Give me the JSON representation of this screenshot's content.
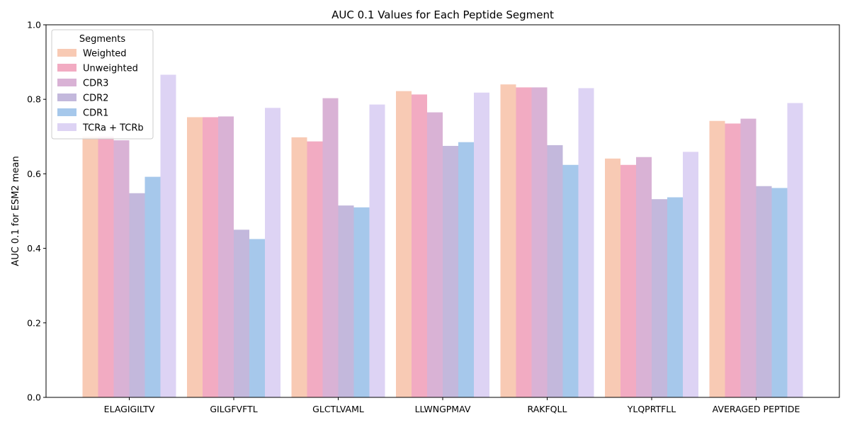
{
  "chart_data": {
    "type": "bar",
    "title": "AUC 0.1 Values for Each Peptide Segment",
    "xlabel": "",
    "ylabel": "AUC 0.1 for ESM2 mean",
    "ylim": [
      0,
      1.0
    ],
    "yticks": [
      "0.0",
      "0.2",
      "0.4",
      "0.6",
      "0.8",
      "1.0"
    ],
    "grid": false,
    "legend": {
      "title": "Segments",
      "placement": "top-left"
    },
    "categories": [
      "ELAGIGILTV",
      "GILGFVFTL",
      "GLCTLVAML",
      "LLWNGPMAV",
      "RAKFQLL",
      "YLQPRTFLL",
      "AVERAGED PEPTIDE"
    ],
    "series": [
      {
        "name": "Weighted",
        "color": "#f8cab4",
        "values": [
          0.7,
          0.752,
          0.698,
          0.822,
          0.84,
          0.641,
          0.742
        ]
      },
      {
        "name": "Unweighted",
        "color": "#f2abc2",
        "values": [
          0.7,
          0.752,
          0.687,
          0.813,
          0.832,
          0.624,
          0.735
        ]
      },
      {
        "name": "CDR3",
        "color": "#d9b2d5",
        "values": [
          0.69,
          0.754,
          0.803,
          0.765,
          0.832,
          0.645,
          0.748
        ]
      },
      {
        "name": "CDR2",
        "color": "#c3b8dc",
        "values": [
          0.548,
          0.45,
          0.515,
          0.675,
          0.677,
          0.532,
          0.567
        ]
      },
      {
        "name": "CDR1",
        "color": "#a6c8eb",
        "values": [
          0.592,
          0.425,
          0.51,
          0.685,
          0.624,
          0.537,
          0.562
        ]
      },
      {
        "name": "TCRa + TCRb",
        "color": "#ddd3f4",
        "values": [
          0.866,
          0.777,
          0.786,
          0.818,
          0.83,
          0.659,
          0.79
        ]
      }
    ]
  }
}
